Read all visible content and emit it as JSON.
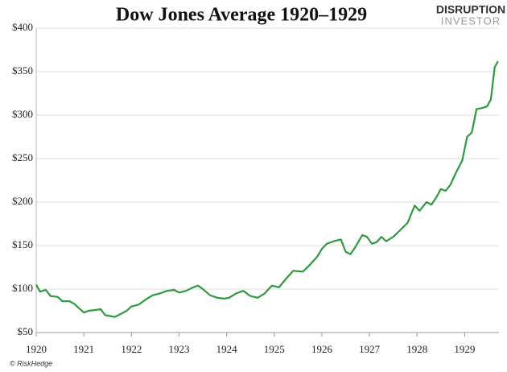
{
  "chart_data": {
    "type": "line",
    "title": "Dow Jones Average 1920–1929",
    "logo": {
      "top": "DISRUPTION",
      "bottom": "INVESTOR"
    },
    "source": "© RiskHedge",
    "x": [
      1920.0,
      1920.08,
      1920.2,
      1920.3,
      1920.45,
      1920.55,
      1920.7,
      1920.8,
      1920.9,
      1921.0,
      1921.1,
      1921.25,
      1921.35,
      1921.45,
      1921.55,
      1921.65,
      1921.8,
      1921.9,
      1922.0,
      1922.15,
      1922.3,
      1922.45,
      1922.6,
      1922.75,
      1922.9,
      1923.0,
      1923.15,
      1923.3,
      1923.4,
      1923.5,
      1923.65,
      1923.8,
      1923.95,
      1924.05,
      1924.2,
      1924.35,
      1924.5,
      1924.65,
      1924.8,
      1924.95,
      1925.1,
      1925.25,
      1925.4,
      1925.6,
      1925.75,
      1925.9,
      1926.0,
      1926.1,
      1926.25,
      1926.4,
      1926.5,
      1926.6,
      1926.7,
      1926.85,
      1926.95,
      1927.05,
      1927.15,
      1927.25,
      1927.35,
      1927.5,
      1927.65,
      1927.8,
      1927.95,
      1928.05,
      1928.2,
      1928.3,
      1928.4,
      1928.5,
      1928.6,
      1928.7,
      1928.8,
      1928.95,
      1929.05,
      1929.15,
      1929.25,
      1929.35,
      1929.47,
      1929.55,
      1929.63,
      1929.7
    ],
    "series": [
      {
        "name": "Dow Jones Average",
        "color": "#2e9a3e",
        "values": [
          105,
          97,
          99,
          92,
          91,
          86,
          86,
          83,
          78,
          73,
          75,
          76,
          77,
          70,
          69,
          68,
          72,
          75,
          80,
          82,
          88,
          93,
          95,
          98,
          99,
          96,
          98,
          102,
          104,
          100,
          93,
          90,
          89,
          90,
          95,
          98,
          92,
          90,
          95,
          104,
          102,
          112,
          121,
          120,
          128,
          137,
          146,
          152,
          155,
          157,
          143,
          140,
          148,
          162,
          160,
          152,
          154,
          160,
          155,
          160,
          168,
          176,
          196,
          190,
          200,
          197,
          205,
          215,
          213,
          220,
          232,
          248,
          275,
          280,
          307,
          308,
          310,
          318,
          355,
          362
        ]
      }
    ],
    "xlim": [
      1920,
      1929.72
    ],
    "xticks": [
      1920,
      1921,
      1922,
      1923,
      1924,
      1925,
      1926,
      1927,
      1928,
      1929
    ],
    "ylim": [
      50,
      400
    ],
    "yticks": [
      {
        "value": 50,
        "label": "$50"
      },
      {
        "value": 100,
        "label": "$100"
      },
      {
        "value": 150,
        "label": "$150"
      },
      {
        "value": 200,
        "label": "$200"
      },
      {
        "value": 250,
        "label": "$250"
      },
      {
        "value": 300,
        "label": "$300"
      },
      {
        "value": 350,
        "label": "$350"
      },
      {
        "value": 400,
        "label": "$400"
      }
    ],
    "grid": true
  }
}
